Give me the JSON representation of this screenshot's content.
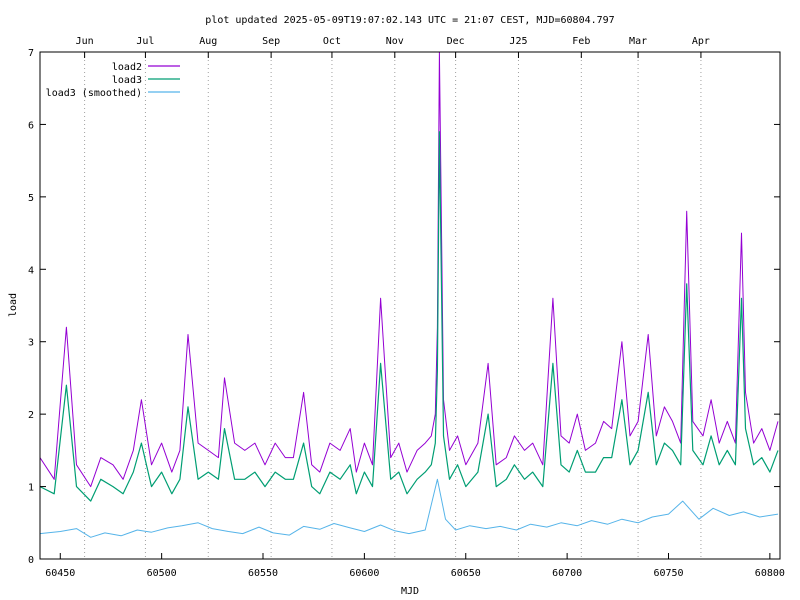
{
  "chart_data": {
    "type": "line",
    "title": "plot updated 2025-05-09T19:07:02.143 UTC = 21:07 CEST, MJD=60804.797",
    "xlabel": "MJD",
    "ylabel": "load",
    "xlim": [
      60440,
      60805
    ],
    "ylim": [
      0,
      7
    ],
    "grid": "vertical dotted lines at month boundaries",
    "legend_position": "top-left",
    "x_ticks": [
      60450,
      60500,
      60550,
      60600,
      60650,
      60700,
      60750,
      60800
    ],
    "x_tick_labels": [
      "60450",
      "60500",
      "60550",
      "60600",
      "60650",
      "60700",
      "60750",
      "60800"
    ],
    "y_ticks": [
      0,
      1,
      2,
      3,
      4,
      5,
      6,
      7
    ],
    "y_tick_labels": [
      "0",
      "1",
      "2",
      "3",
      "4",
      "5",
      "6",
      "7"
    ],
    "top_axis_months": [
      {
        "label": "Jun",
        "x": 60462
      },
      {
        "label": "Jul",
        "x": 60492
      },
      {
        "label": "Aug",
        "x": 60523
      },
      {
        "label": "Sep",
        "x": 60554
      },
      {
        "label": "Oct",
        "x": 60584
      },
      {
        "label": "Nov",
        "x": 60615
      },
      {
        "label": "Dec",
        "x": 60645
      },
      {
        "label": "J25",
        "x": 60676
      },
      {
        "label": "Feb",
        "x": 60707
      },
      {
        "label": "Mar",
        "x": 60735
      },
      {
        "label": "Apr",
        "x": 60766
      }
    ],
    "series": [
      {
        "name": "load2",
        "color": "#9400d3",
        "x": [
          60440,
          60447,
          60453,
          60458,
          60465,
          60470,
          60476,
          60481,
          60486,
          60490,
          60495,
          60500,
          60505,
          60509,
          60513,
          60518,
          60523,
          60528,
          60531,
          60536,
          60541,
          60546,
          60551,
          60556,
          60561,
          60565,
          60570,
          60574,
          60578,
          60583,
          60588,
          60593,
          60596,
          60600,
          60604,
          60608,
          60613,
          60617,
          60621,
          60626,
          60630,
          60633,
          60635,
          60636,
          60637,
          60639,
          60642,
          60646,
          60650,
          60656,
          60661,
          60665,
          60670,
          60674,
          60679,
          60683,
          60688,
          60693,
          60697,
          60701,
          60705,
          60709,
          60714,
          60718,
          60722,
          60727,
          60731,
          60735,
          60740,
          60744,
          60748,
          60752,
          60756,
          60759,
          60762,
          60767,
          60771,
          60775,
          60779,
          60783,
          60786,
          60788,
          60792,
          60796,
          60800,
          60804
        ],
        "y": [
          1.4,
          1.1,
          3.2,
          1.3,
          1.0,
          1.4,
          1.3,
          1.1,
          1.5,
          2.2,
          1.3,
          1.6,
          1.2,
          1.5,
          3.1,
          1.6,
          1.5,
          1.4,
          2.5,
          1.6,
          1.5,
          1.6,
          1.3,
          1.6,
          1.4,
          1.4,
          2.3,
          1.3,
          1.2,
          1.6,
          1.5,
          1.8,
          1.2,
          1.6,
          1.3,
          3.6,
          1.4,
          1.6,
          1.2,
          1.5,
          1.6,
          1.7,
          2.0,
          3.2,
          7.0,
          2.2,
          1.5,
          1.7,
          1.3,
          1.6,
          2.7,
          1.3,
          1.4,
          1.7,
          1.5,
          1.6,
          1.3,
          3.6,
          1.7,
          1.6,
          2.0,
          1.5,
          1.6,
          1.9,
          1.8,
          3.0,
          1.7,
          1.9,
          3.1,
          1.7,
          2.1,
          1.9,
          1.6,
          4.8,
          1.9,
          1.7,
          2.2,
          1.6,
          1.9,
          1.6,
          4.5,
          2.3,
          1.6,
          1.8,
          1.5,
          1.9
        ]
      },
      {
        "name": "load3",
        "color": "#009e73",
        "x": [
          60440,
          60447,
          60453,
          60458,
          60465,
          60470,
          60476,
          60481,
          60486,
          60490,
          60495,
          60500,
          60505,
          60509,
          60513,
          60518,
          60523,
          60528,
          60531,
          60536,
          60541,
          60546,
          60551,
          60556,
          60561,
          60565,
          60570,
          60574,
          60578,
          60583,
          60588,
          60593,
          60596,
          60600,
          60604,
          60608,
          60613,
          60617,
          60621,
          60626,
          60630,
          60633,
          60635,
          60636,
          60637,
          60639,
          60642,
          60646,
          60650,
          60656,
          60661,
          60665,
          60670,
          60674,
          60679,
          60683,
          60688,
          60693,
          60697,
          60701,
          60705,
          60709,
          60714,
          60718,
          60722,
          60727,
          60731,
          60735,
          60740,
          60744,
          60748,
          60752,
          60756,
          60759,
          60762,
          60767,
          60771,
          60775,
          60779,
          60783,
          60786,
          60788,
          60792,
          60796,
          60800,
          60804
        ],
        "y": [
          1.0,
          0.9,
          2.4,
          1.0,
          0.8,
          1.1,
          1.0,
          0.9,
          1.2,
          1.6,
          1.0,
          1.2,
          0.9,
          1.1,
          2.1,
          1.1,
          1.2,
          1.1,
          1.8,
          1.1,
          1.1,
          1.2,
          1.0,
          1.2,
          1.1,
          1.1,
          1.6,
          1.0,
          0.9,
          1.2,
          1.1,
          1.3,
          0.9,
          1.2,
          1.0,
          2.7,
          1.1,
          1.2,
          0.9,
          1.1,
          1.2,
          1.3,
          1.6,
          2.6,
          5.9,
          1.7,
          1.1,
          1.3,
          1.0,
          1.2,
          2.0,
          1.0,
          1.1,
          1.3,
          1.1,
          1.2,
          1.0,
          2.7,
          1.3,
          1.2,
          1.5,
          1.2,
          1.2,
          1.4,
          1.4,
          2.2,
          1.3,
          1.5,
          2.3,
          1.3,
          1.6,
          1.5,
          1.3,
          3.8,
          1.5,
          1.3,
          1.7,
          1.3,
          1.5,
          1.3,
          3.6,
          1.8,
          1.3,
          1.4,
          1.2,
          1.5
        ]
      },
      {
        "name": "load3 (smoothed)",
        "color": "#56b4e9",
        "x": [
          60440,
          60450,
          60458,
          60465,
          60472,
          60480,
          60488,
          60495,
          60503,
          60510,
          60518,
          60525,
          60533,
          60540,
          60548,
          60555,
          60563,
          60570,
          60578,
          60585,
          60593,
          60600,
          60608,
          60615,
          60622,
          60630,
          60636,
          60640,
          60645,
          60652,
          60660,
          60667,
          60675,
          60682,
          60690,
          60697,
          60705,
          60712,
          60720,
          60727,
          60735,
          60742,
          60750,
          60757,
          60765,
          60772,
          60780,
          60787,
          60795,
          60804
        ],
        "y": [
          0.35,
          0.38,
          0.42,
          0.3,
          0.36,
          0.32,
          0.4,
          0.37,
          0.43,
          0.46,
          0.5,
          0.42,
          0.38,
          0.35,
          0.44,
          0.36,
          0.33,
          0.45,
          0.41,
          0.49,
          0.43,
          0.38,
          0.47,
          0.39,
          0.35,
          0.4,
          1.1,
          0.55,
          0.4,
          0.46,
          0.42,
          0.45,
          0.4,
          0.48,
          0.44,
          0.5,
          0.46,
          0.53,
          0.48,
          0.55,
          0.5,
          0.58,
          0.62,
          0.8,
          0.55,
          0.7,
          0.6,
          0.65,
          0.58,
          0.62
        ]
      }
    ]
  }
}
